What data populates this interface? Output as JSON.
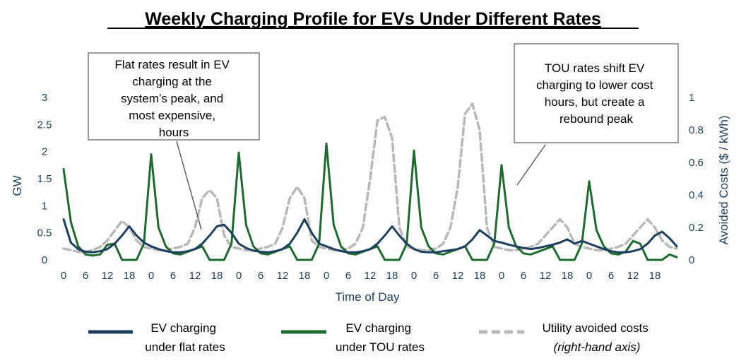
{
  "chart_data": {
    "type": "line",
    "title": "Weekly Charging Profile for EVs Under Different Rates",
    "xlabel": "Time of Day",
    "ylabel_left": "GW",
    "ylabel_right": "Avoided Costs ($ / kWh)",
    "ylim_left": [
      0,
      3
    ],
    "ylim_right": [
      0,
      1
    ],
    "yticks_left": [
      "0",
      "0.5",
      "1",
      "1.5",
      "2",
      "2.5",
      "3"
    ],
    "yticks_right": [
      "0",
      "0.2",
      "0.4",
      "0.6",
      "0.8",
      "1"
    ],
    "xticks": [
      "0",
      "6",
      "12",
      "18",
      "0",
      "6",
      "12",
      "18",
      "0",
      "6",
      "12",
      "18",
      "0",
      "6",
      "12",
      "18",
      "0",
      "6",
      "12",
      "18",
      "0",
      "6",
      "12",
      "18",
      "0",
      "6",
      "12",
      "18"
    ],
    "x_hours": [
      0,
      2,
      4,
      6,
      8,
      10,
      12,
      14,
      16,
      18,
      20,
      22,
      24,
      26,
      28,
      30,
      32,
      34,
      36,
      38,
      40,
      42,
      44,
      46,
      48,
      50,
      52,
      54,
      56,
      58,
      60,
      62,
      64,
      66,
      68,
      70,
      72,
      74,
      76,
      78,
      80,
      82,
      84,
      86,
      88,
      90,
      92,
      94,
      96,
      98,
      100,
      102,
      104,
      106,
      108,
      110,
      112,
      114,
      116,
      118,
      120,
      122,
      124,
      126,
      128,
      130,
      132,
      134,
      136,
      138,
      140,
      142,
      144,
      146,
      148,
      150,
      152,
      154,
      156,
      158,
      160,
      162,
      164,
      166,
      168
    ],
    "series": [
      {
        "name": "EV charging under flat rates",
        "axis": "left",
        "color": "#1b3f5c",
        "dash": "solid",
        "values": [
          0.75,
          0.32,
          0.2,
          0.15,
          0.14,
          0.16,
          0.2,
          0.3,
          0.45,
          0.62,
          0.45,
          0.32,
          0.25,
          0.2,
          0.16,
          0.14,
          0.14,
          0.16,
          0.2,
          0.3,
          0.45,
          0.62,
          0.65,
          0.5,
          0.3,
          0.22,
          0.17,
          0.15,
          0.14,
          0.16,
          0.2,
          0.3,
          0.5,
          0.75,
          0.5,
          0.3,
          0.25,
          0.2,
          0.16,
          0.14,
          0.14,
          0.16,
          0.2,
          0.3,
          0.45,
          0.62,
          0.45,
          0.3,
          0.2,
          0.15,
          0.14,
          0.14,
          0.16,
          0.18,
          0.2,
          0.25,
          0.38,
          0.55,
          0.45,
          0.35,
          0.32,
          0.28,
          0.25,
          0.22,
          0.2,
          0.22,
          0.25,
          0.28,
          0.32,
          0.38,
          0.3,
          0.35,
          0.3,
          0.25,
          0.2,
          0.16,
          0.14,
          0.14,
          0.16,
          0.2,
          0.3,
          0.45,
          0.52,
          0.4,
          0.25
        ]
      },
      {
        "name": "EV charging under TOU rates",
        "axis": "left",
        "color": "#1e6b2e",
        "dash": "solid",
        "values": [
          1.68,
          0.7,
          0.25,
          0.1,
          0.08,
          0.1,
          0.28,
          0.3,
          0.0,
          0.0,
          0.0,
          0.3,
          1.95,
          0.6,
          0.25,
          0.12,
          0.1,
          0.15,
          0.2,
          0.25,
          0.0,
          0.0,
          0.0,
          0.3,
          1.98,
          0.65,
          0.25,
          0.12,
          0.1,
          0.15,
          0.2,
          0.25,
          0.0,
          0.0,
          0.0,
          0.3,
          2.15,
          0.65,
          0.25,
          0.12,
          0.1,
          0.15,
          0.2,
          0.25,
          0.0,
          0.0,
          0.0,
          0.3,
          2.02,
          0.6,
          0.25,
          0.12,
          0.1,
          0.15,
          0.2,
          0.25,
          0.0,
          0.0,
          0.0,
          0.3,
          1.75,
          0.6,
          0.25,
          0.12,
          0.1,
          0.15,
          0.2,
          0.25,
          0.0,
          0.0,
          0.0,
          0.3,
          1.45,
          0.55,
          0.25,
          0.12,
          0.1,
          0.15,
          0.35,
          0.3,
          0.0,
          0.0,
          0.0,
          0.1,
          0.05
        ]
      },
      {
        "name": "Utility avoided costs",
        "axis": "right",
        "color": "#b8b8b8",
        "dash": "dashed",
        "values": [
          0.07,
          0.06,
          0.05,
          0.05,
          0.06,
          0.08,
          0.12,
          0.18,
          0.24,
          0.2,
          0.12,
          0.08,
          0.07,
          0.06,
          0.06,
          0.07,
          0.08,
          0.1,
          0.2,
          0.38,
          0.43,
          0.38,
          0.15,
          0.08,
          0.07,
          0.06,
          0.06,
          0.07,
          0.08,
          0.1,
          0.2,
          0.38,
          0.45,
          0.38,
          0.12,
          0.08,
          0.07,
          0.06,
          0.06,
          0.07,
          0.1,
          0.2,
          0.5,
          0.86,
          0.88,
          0.75,
          0.2,
          0.08,
          0.07,
          0.06,
          0.06,
          0.07,
          0.1,
          0.2,
          0.45,
          0.9,
          0.96,
          0.8,
          0.2,
          0.08,
          0.07,
          0.06,
          0.06,
          0.07,
          0.08,
          0.1,
          0.15,
          0.2,
          0.25,
          0.2,
          0.1,
          0.08,
          0.07,
          0.06,
          0.06,
          0.07,
          0.08,
          0.1,
          0.15,
          0.2,
          0.25,
          0.2,
          0.12,
          0.08,
          0.07
        ]
      }
    ],
    "annotations": [
      {
        "lines": [
          "Flat rates result in EV",
          "charging at the",
          "system’s peak, and",
          "most expensive,",
          "hours"
        ]
      },
      {
        "lines": [
          "TOU rates shift EV",
          "charging to lower cost",
          "hours, but create a",
          "rebound peak"
        ]
      }
    ],
    "legend": [
      {
        "lines": [
          "EV charging",
          "under flat rates"
        ]
      },
      {
        "lines": [
          "EV charging",
          "under TOU rates"
        ]
      },
      {
        "lines": [
          "Utility avoided costs",
          "(right-hand axis)"
        ]
      }
    ],
    "legend_position": "bottom",
    "grid": false
  }
}
